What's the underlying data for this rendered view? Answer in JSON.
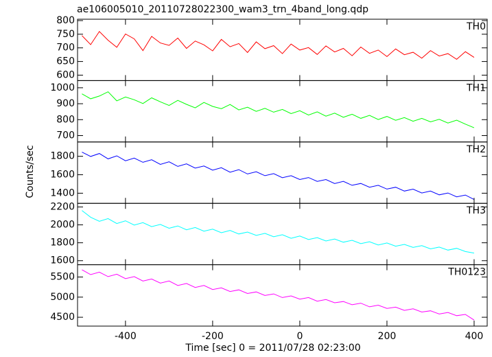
{
  "chart_data": {
    "type": "line",
    "title": "ae106005010_20110728022300_wam3_trn_4band_long.qdp",
    "xlabel": "Time [sec] 0 = 2011/07/28 02:23:00",
    "ylabel": "Counts/sec",
    "xlim": [
      -510,
      430
    ],
    "xticks": [
      -400,
      -200,
      0,
      200,
      400
    ],
    "x": [
      -500,
      -480,
      -460,
      -440,
      -420,
      -400,
      -380,
      -360,
      -340,
      -320,
      -300,
      -280,
      -260,
      -240,
      -220,
      -200,
      -180,
      -160,
      -140,
      -120,
      -100,
      -80,
      -60,
      -40,
      -20,
      0,
      20,
      40,
      60,
      80,
      100,
      120,
      140,
      160,
      180,
      200,
      220,
      240,
      260,
      280,
      300,
      320,
      340,
      360,
      380,
      400
    ],
    "series": [
      {
        "name": "TH0",
        "color": "#ff0000",
        "ylim": [
          580,
          805
        ],
        "yticks": [
          600,
          650,
          700,
          750,
          800
        ],
        "values": [
          745,
          712,
          760,
          728,
          702,
          751,
          733,
          690,
          742,
          718,
          709,
          736,
          698,
          725,
          711,
          689,
          731,
          704,
          716,
          683,
          722,
          697,
          708,
          679,
          714,
          692,
          701,
          676,
          707,
          685,
          698,
          671,
          703,
          680,
          692,
          668,
          696,
          675,
          684,
          662,
          690,
          670,
          679,
          658,
          686,
          665
        ]
      },
      {
        "name": "TH1",
        "color": "#00ff00",
        "ylim": [
          660,
          1045
        ],
        "yticks": [
          700,
          800,
          900,
          1000
        ],
        "values": [
          962,
          931,
          948,
          975,
          918,
          942,
          925,
          901,
          937,
          912,
          889,
          921,
          896,
          874,
          908,
          883,
          869,
          895,
          861,
          878,
          852,
          871,
          847,
          864,
          838,
          856,
          829,
          849,
          822,
          841,
          815,
          834,
          808,
          827,
          801,
          820,
          796,
          813,
          790,
          808,
          786,
          802,
          779,
          797,
          772,
          749
        ]
      },
      {
        "name": "TH2",
        "color": "#0000ff",
        "ylim": [
          1290,
          1955
        ],
        "yticks": [
          1400,
          1600,
          1800
        ],
        "values": [
          1845,
          1798,
          1830,
          1772,
          1805,
          1751,
          1780,
          1735,
          1762,
          1712,
          1740,
          1690,
          1718,
          1672,
          1695,
          1650,
          1676,
          1628,
          1655,
          1608,
          1632,
          1590,
          1612,
          1568,
          1590,
          1548,
          1570,
          1528,
          1548,
          1505,
          1528,
          1486,
          1506,
          1465,
          1486,
          1445,
          1465,
          1423,
          1444,
          1402,
          1423,
          1382,
          1402,
          1361,
          1380,
          1332
        ]
      },
      {
        "name": "TH3",
        "color": "#00ffff",
        "ylim": [
          1555,
          2240
        ],
        "yticks": [
          1600,
          1800,
          2000,
          2200
        ],
        "values": [
          2160,
          2085,
          2040,
          2070,
          2015,
          2045,
          1998,
          2025,
          1980,
          2005,
          1962,
          1988,
          1945,
          1970,
          1930,
          1952,
          1912,
          1938,
          1898,
          1920,
          1882,
          1905,
          1868,
          1890,
          1850,
          1875,
          1836,
          1858,
          1820,
          1842,
          1806,
          1828,
          1790,
          1812,
          1776,
          1798,
          1762,
          1782,
          1748,
          1768,
          1732,
          1752,
          1718,
          1738,
          1702,
          1685
        ]
      },
      {
        "name": "TH0123",
        "color": "#ff00ff",
        "ylim": [
          4280,
          5805
        ],
        "yticks": [
          4500,
          5000,
          5500
        ],
        "values": [
          5680,
          5560,
          5620,
          5510,
          5570,
          5460,
          5510,
          5400,
          5450,
          5350,
          5400,
          5290,
          5340,
          5240,
          5290,
          5190,
          5230,
          5140,
          5180,
          5090,
          5130,
          5040,
          5080,
          4990,
          5030,
          4950,
          4990,
          4900,
          4940,
          4860,
          4890,
          4810,
          4850,
          4760,
          4800,
          4720,
          4750,
          4670,
          4710,
          4630,
          4660,
          4580,
          4620,
          4540,
          4570,
          4430
        ]
      }
    ]
  }
}
